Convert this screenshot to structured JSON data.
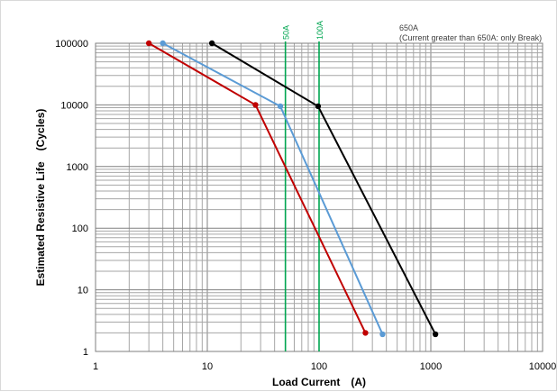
{
  "chart_data": {
    "type": "line",
    "title": "",
    "xlabel": "Load Current　(A)",
    "ylabel": "Estimated Resistive Life　(Cycles)",
    "x_scale": "log",
    "y_scale": "log",
    "xlim": [
      1,
      10000
    ],
    "ylim": [
      1,
      100000
    ],
    "x_ticks": [
      "1",
      "10",
      "100",
      "1000",
      "10000"
    ],
    "y_ticks": [
      "1",
      "10",
      "100",
      "1000",
      "10000",
      "100000"
    ],
    "grid": true,
    "series": [
      {
        "color": "#c00000",
        "x": [
          3,
          27,
          260
        ],
        "y": [
          100000,
          10000,
          2
        ]
      },
      {
        "color": "#5b9bd5",
        "x": [
          4,
          45,
          370
        ],
        "y": [
          100000,
          9500,
          1.9
        ]
      },
      {
        "color": "#000000",
        "x": [
          11,
          98,
          1100
        ],
        "y": [
          100000,
          9500,
          1.9
        ]
      }
    ],
    "reference_lines": [
      {
        "x": 50,
        "label": "50A",
        "color": "#00a651"
      },
      {
        "x": 100,
        "label": "100A",
        "color": "#00a651"
      }
    ],
    "annotation": {
      "line1": "650A",
      "line2": "(Current greater than 650A: only Break)"
    }
  }
}
